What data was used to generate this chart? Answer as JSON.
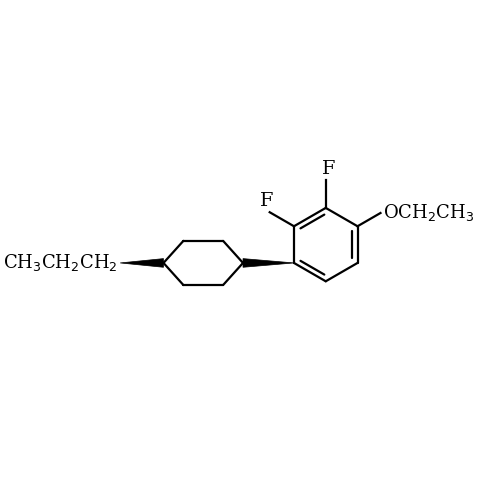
{
  "background_color": "#ffffff",
  "line_color": "#000000",
  "line_width": 1.6,
  "figsize": [
    4.79,
    4.79
  ],
  "dpi": 100,
  "font_size": 13,
  "font_family": "DejaVu Serif"
}
